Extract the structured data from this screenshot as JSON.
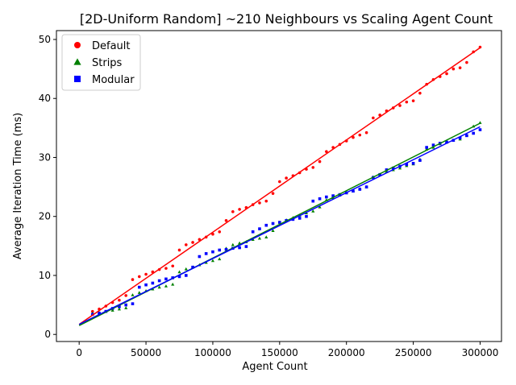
{
  "chart_data": {
    "type": "scatter",
    "title": "[2D-Uniform Random] ~210 Neighbours vs Scaling Agent Count",
    "xlabel": "Agent Count",
    "ylabel": "Average Iteration Time (ms)",
    "xlim": [
      -17000,
      316000
    ],
    "ylim": [
      -1.2,
      51.5
    ],
    "xticks": [
      0,
      50000,
      100000,
      150000,
      200000,
      250000,
      300000
    ],
    "xtick_labels": [
      "0",
      "50000",
      "100000",
      "150000",
      "200000",
      "250000",
      "300000"
    ],
    "yticks": [
      0,
      10,
      20,
      30,
      40,
      50
    ],
    "ytick_labels": [
      "0",
      "10",
      "20",
      "30",
      "40",
      "50"
    ],
    "grid": false,
    "legend_position": "top-left",
    "series": [
      {
        "name": "Default",
        "color": "#ff0000",
        "marker": "circle",
        "fit": {
          "x": [
            0,
            300000
          ],
          "y": [
            1.7,
            48.6
          ]
        },
        "x": [
          10000,
          15000,
          20000,
          25000,
          30000,
          35000,
          40000,
          45000,
          50000,
          55000,
          60000,
          65000,
          70000,
          75000,
          80000,
          85000,
          90000,
          95000,
          100000,
          105000,
          110000,
          115000,
          120000,
          125000,
          130000,
          135000,
          140000,
          145000,
          150000,
          155000,
          160000,
          165000,
          170000,
          175000,
          180000,
          185000,
          190000,
          195000,
          200000,
          205000,
          210000,
          215000,
          220000,
          225000,
          230000,
          235000,
          240000,
          245000,
          250000,
          255000,
          260000,
          265000,
          270000,
          275000,
          280000,
          285000,
          290000,
          295000,
          300000
        ],
        "y": [
          3.9,
          4.3,
          4.8,
          5.4,
          5.8,
          6.6,
          9.3,
          9.8,
          10.2,
          10.6,
          11.0,
          11.2,
          11.6,
          14.3,
          15.2,
          15.6,
          16.1,
          16.5,
          17.0,
          17.4,
          19.3,
          20.8,
          21.2,
          21.5,
          22.0,
          22.3,
          22.6,
          23.9,
          25.9,
          26.5,
          26.9,
          27.4,
          28.0,
          28.3,
          29.3,
          31.0,
          31.7,
          32.2,
          32.8,
          33.4,
          33.8,
          34.2,
          36.7,
          37.2,
          37.9,
          38.4,
          38.8,
          39.4,
          39.6,
          40.9,
          42.4,
          43.2,
          43.7,
          44.2,
          45.0,
          45.2,
          46.1,
          47.9,
          48.7
        ]
      },
      {
        "name": "Strips",
        "color": "#008000",
        "marker": "triangle",
        "fit": {
          "x": [
            0,
            300000
          ],
          "y": [
            1.5,
            35.8
          ]
        },
        "x": [
          10000,
          15000,
          20000,
          25000,
          30000,
          35000,
          40000,
          45000,
          50000,
          55000,
          60000,
          65000,
          70000,
          75000,
          80000,
          85000,
          90000,
          95000,
          100000,
          105000,
          110000,
          115000,
          120000,
          125000,
          130000,
          135000,
          140000,
          145000,
          150000,
          155000,
          160000,
          165000,
          170000,
          175000,
          180000,
          185000,
          190000,
          195000,
          200000,
          205000,
          210000,
          215000,
          220000,
          225000,
          230000,
          235000,
          240000,
          245000,
          250000,
          255000,
          260000,
          265000,
          270000,
          275000,
          280000,
          285000,
          290000,
          295000,
          300000
        ],
        "y": [
          3.6,
          3.7,
          3.9,
          4.1,
          4.3,
          4.5,
          6.7,
          7.1,
          7.4,
          7.7,
          8.0,
          8.2,
          8.5,
          10.6,
          11.1,
          11.4,
          11.8,
          12.2,
          12.5,
          12.8,
          14.6,
          15.2,
          15.5,
          15.7,
          16.1,
          16.3,
          16.5,
          17.6,
          19.0,
          19.4,
          19.8,
          20.2,
          20.6,
          20.9,
          21.6,
          22.8,
          23.2,
          23.6,
          24.0,
          24.3,
          24.7,
          25.0,
          26.7,
          27.1,
          27.6,
          27.9,
          28.2,
          28.6,
          28.9,
          29.7,
          31.4,
          31.7,
          32.3,
          32.6,
          32.9,
          33.1,
          33.8,
          35.3,
          35.9
        ]
      },
      {
        "name": "Modular",
        "color": "#0000ff",
        "marker": "square",
        "fit": {
          "x": [
            0,
            300000
          ],
          "y": [
            1.7,
            35.2
          ]
        },
        "x": [
          10000,
          15000,
          20000,
          25000,
          30000,
          35000,
          40000,
          45000,
          50000,
          55000,
          60000,
          65000,
          70000,
          75000,
          80000,
          85000,
          90000,
          95000,
          100000,
          105000,
          110000,
          115000,
          120000,
          125000,
          130000,
          135000,
          140000,
          145000,
          150000,
          155000,
          160000,
          165000,
          170000,
          175000,
          180000,
          185000,
          190000,
          195000,
          200000,
          205000,
          210000,
          215000,
          220000,
          225000,
          230000,
          235000,
          240000,
          245000,
          250000,
          255000,
          260000,
          265000,
          270000,
          275000,
          280000,
          285000,
          290000,
          295000,
          300000
        ],
        "y": [
          3.4,
          3.6,
          3.9,
          4.4,
          4.7,
          5.0,
          5.2,
          8.0,
          8.4,
          8.7,
          9.1,
          9.4,
          9.6,
          9.8,
          10.0,
          11.4,
          13.2,
          13.7,
          14.0,
          14.3,
          14.4,
          14.6,
          14.7,
          14.9,
          17.4,
          17.9,
          18.5,
          18.8,
          19.0,
          19.3,
          19.5,
          19.7,
          20.0,
          22.6,
          23.0,
          23.3,
          23.5,
          23.7,
          24.0,
          24.3,
          24.6,
          25.0,
          26.6,
          27.1,
          27.9,
          28.2,
          28.5,
          28.8,
          29.0,
          29.5,
          31.7,
          32.1,
          32.4,
          32.6,
          32.9,
          33.3,
          33.7,
          34.1,
          34.7
        ]
      }
    ]
  }
}
